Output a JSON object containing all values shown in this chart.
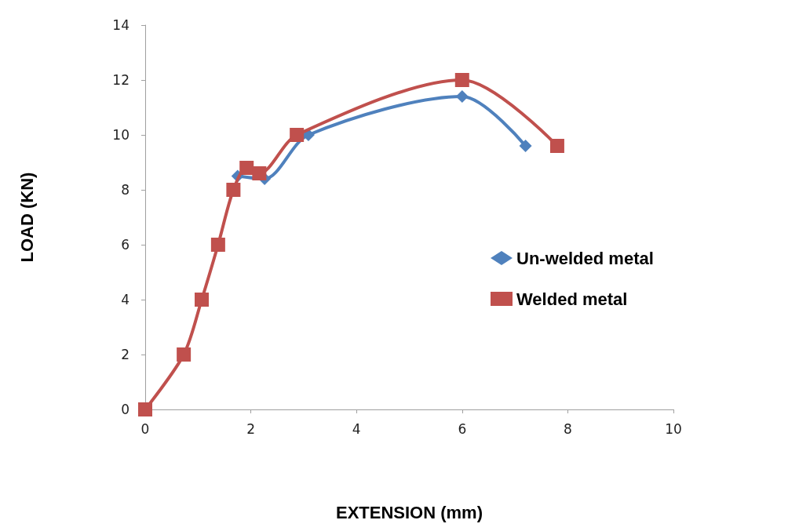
{
  "chart_data": {
    "type": "line",
    "xlabel": "EXTENSION (mm)",
    "ylabel": "LOAD (KN)",
    "xlim": [
      0,
      10
    ],
    "xticks": [
      0,
      2,
      4,
      6,
      8,
      10
    ],
    "ylim": [
      0,
      14
    ],
    "yticks": [
      0,
      2,
      4,
      6,
      8,
      10,
      12,
      14
    ],
    "grid": false,
    "legend": "right",
    "series": [
      {
        "name": "Un-welded metal",
        "color": "#4f81bd",
        "marker": "diamond",
        "x": [
          1.75,
          2.26,
          3.09,
          6,
          7.2
        ],
        "values": [
          8.5,
          8.4,
          10,
          11.4,
          9.6
        ]
      },
      {
        "name": "Welded metal",
        "color": "#c0504d",
        "marker": "square",
        "x": [
          0,
          0.73,
          1.07,
          1.38,
          1.67,
          1.92,
          2.16,
          2.87,
          6,
          7.8
        ],
        "values": [
          0,
          2,
          4,
          6,
          8,
          8.8,
          8.6,
          10,
          12,
          9.6
        ]
      }
    ]
  }
}
